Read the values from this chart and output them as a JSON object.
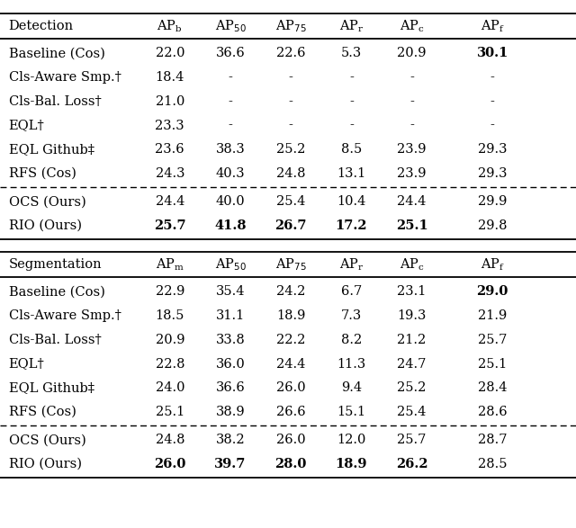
{
  "detection_header": [
    "Detection",
    "AP_b",
    "AP_50",
    "AP_75",
    "AP_r",
    "AP_c",
    "AP_f"
  ],
  "detection_rows": [
    [
      "Baseline (Cos)",
      "22.0",
      "36.6",
      "22.6",
      "5.3",
      "20.9",
      "30.1"
    ],
    [
      "Cls-Aware Smp.†",
      "18.4",
      "-",
      "-",
      "-",
      "-",
      "-"
    ],
    [
      "Cls-Bal. Loss†",
      "21.0",
      "-",
      "-",
      "-",
      "-",
      "-"
    ],
    [
      "EQL†",
      "23.3",
      "-",
      "-",
      "-",
      "-",
      "-"
    ],
    [
      "EQL Github‡",
      "23.6",
      "38.3",
      "25.2",
      "8.5",
      "23.9",
      "29.3"
    ],
    [
      "RFS (Cos)",
      "24.3",
      "40.3",
      "24.8",
      "13.1",
      "23.9",
      "29.3"
    ]
  ],
  "detection_ours": [
    [
      "OCS (Ours)",
      "24.4",
      "40.0",
      "25.4",
      "10.4",
      "24.4",
      "29.9"
    ],
    [
      "RIO (Ours)",
      "25.7",
      "41.8",
      "26.7",
      "17.2",
      "25.1",
      "29.8"
    ]
  ],
  "detection_bold": {
    "Baseline (Cos)_det": [
      6
    ],
    "RIO (Ours)_det": [
      1,
      2,
      3,
      4,
      5
    ]
  },
  "segmentation_header": [
    "Segmentation",
    "AP_m",
    "AP_50",
    "AP_75",
    "AP_r",
    "AP_c",
    "AP_f"
  ],
  "segmentation_rows": [
    [
      "Baseline (Cos)",
      "22.9",
      "35.4",
      "24.2",
      "6.7",
      "23.1",
      "29.0"
    ],
    [
      "Cls-Aware Smp.†",
      "18.5",
      "31.1",
      "18.9",
      "7.3",
      "19.3",
      "21.9"
    ],
    [
      "Cls-Bal. Loss†",
      "20.9",
      "33.8",
      "22.2",
      "8.2",
      "21.2",
      "25.7"
    ],
    [
      "EQL†",
      "22.8",
      "36.0",
      "24.4",
      "11.3",
      "24.7",
      "25.1"
    ],
    [
      "EQL Github‡",
      "24.0",
      "36.6",
      "26.0",
      "9.4",
      "25.2",
      "28.4"
    ],
    [
      "RFS (Cos)",
      "25.1",
      "38.9",
      "26.6",
      "15.1",
      "25.4",
      "28.6"
    ]
  ],
  "segmentation_ours": [
    [
      "OCS (Ours)",
      "24.8",
      "38.2",
      "26.0",
      "12.0",
      "25.7",
      "28.7"
    ],
    [
      "RIO (Ours)",
      "26.0",
      "39.7",
      "28.0",
      "18.9",
      "26.2",
      "28.5"
    ]
  ],
  "segmentation_bold": {
    "Baseline (Cos)_seg": [
      6
    ],
    "RIO (Ours)_seg": [
      1,
      2,
      3,
      4,
      5
    ]
  },
  "figsize": [
    6.4,
    5.87
  ],
  "fontsize": 10.5,
  "bg_color": "#ffffff",
  "text_color": "#000000"
}
